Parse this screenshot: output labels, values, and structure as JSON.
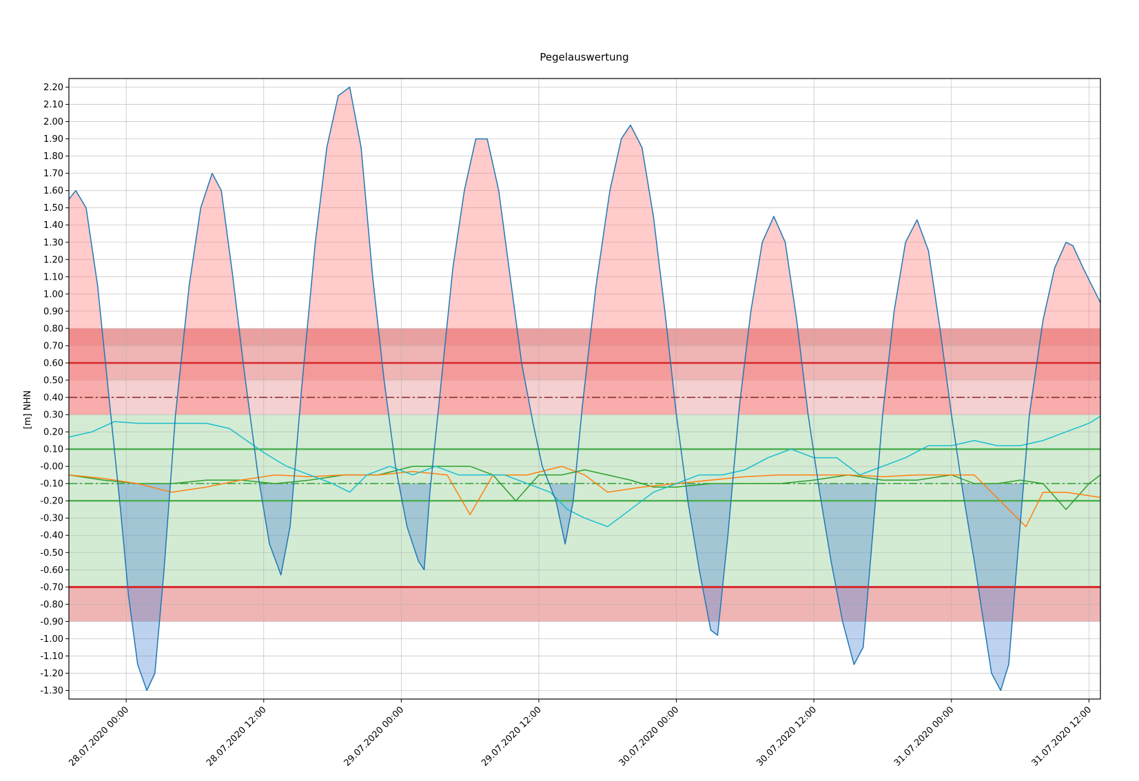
{
  "chart_data": {
    "type": "area",
    "title": "Pegelauswertung",
    "xlabel": "",
    "ylabel": "[m] NHN",
    "xlim": [
      "27.07.2020 19:00",
      "31.07.2020 12:00"
    ],
    "ylim": [
      -1.35,
      2.25
    ],
    "yticks": [
      2.2,
      2.1,
      2.0,
      1.9,
      1.8,
      1.7,
      1.6,
      1.5,
      1.4,
      1.3,
      1.2,
      1.1,
      1.0,
      0.9,
      0.8,
      0.7,
      0.6,
      0.5,
      0.4,
      0.3,
      0.2,
      0.1,
      0.0,
      -0.1,
      -0.2,
      -0.3,
      -0.4,
      -0.5,
      -0.6,
      -0.7,
      -0.8,
      -0.9,
      -1.0,
      -1.1,
      -1.2,
      -1.3
    ],
    "ytick_labels": [
      "2.20",
      "2.10",
      "2.00",
      "1.90",
      "1.80",
      "1.70",
      "1.60",
      "1.50",
      "1.40",
      "1.30",
      "1.20",
      "1.10",
      "1.00",
      "0.90",
      "0.80",
      "0.70",
      "0.60",
      "0.50",
      "0.40",
      "0.30",
      "0.20",
      "0.10",
      "-0.00",
      "-0.10",
      "-0.20",
      "-0.30",
      "-0.40",
      "-0.50",
      "-0.60",
      "-0.70",
      "-0.80",
      "-0.90",
      "-1.00",
      "-1.10",
      "-1.20",
      "-1.30"
    ],
    "xtick_labels": [
      "28.07.2020 00:00",
      "28.07.2020 12:00",
      "29.07.2020 00:00",
      "29.07.2020 12:00",
      "30.07.2020 00:00",
      "30.07.2020 12:00",
      "31.07.2020 00:00",
      "31.07.2020 12:00"
    ],
    "xticks_hours": [
      5,
      17,
      29,
      41,
      53,
      65,
      77,
      89
    ],
    "x_start": "27.07.2020 19:00",
    "grid": true,
    "bands": [
      {
        "from": 0.7,
        "to": 0.8,
        "color": "#e8a0a0"
      },
      {
        "from": 0.5,
        "to": 0.7,
        "color": "#efb4b4"
      },
      {
        "from": 0.3,
        "to": 0.5,
        "color": "#f5d0d0"
      },
      {
        "from": -0.7,
        "to": 0.3,
        "color": "#d3ebd3"
      },
      {
        "from": -0.9,
        "to": -0.7,
        "color": "#efb4b4"
      }
    ],
    "hlines": [
      {
        "y": 0.6,
        "color": "#d62728",
        "style": "solid",
        "width": 2.5
      },
      {
        "y": 0.4,
        "color": "#8c2525",
        "style": "dashdot",
        "width": 1.5
      },
      {
        "y": 0.1,
        "color": "#4caf50",
        "style": "solid",
        "width": 2.5
      },
      {
        "y": -0.1,
        "color": "#2ca02c",
        "style": "dashdot",
        "width": 1.5
      },
      {
        "y": -0.2,
        "color": "#4caf50",
        "style": "solid",
        "width": 2.5
      },
      {
        "y": -0.7,
        "color": "#d62728",
        "style": "solid",
        "width": 3
      }
    ],
    "series": [
      {
        "color": "#1f77b4",
        "points": [
          [
            0,
            1.55
          ],
          [
            0.6,
            1.6
          ],
          [
            1.5,
            1.5
          ],
          [
            2.5,
            1.05
          ],
          [
            3.5,
            0.4
          ],
          [
            4.5,
            -0.25
          ],
          [
            5.2,
            -0.75
          ],
          [
            6.0,
            -1.15
          ],
          [
            6.8,
            -1.3
          ],
          [
            7.5,
            -1.2
          ],
          [
            8.3,
            -0.6
          ],
          [
            9.3,
            0.3
          ],
          [
            10.5,
            1.05
          ],
          [
            11.5,
            1.5
          ],
          [
            12.5,
            1.7
          ],
          [
            13.3,
            1.6
          ],
          [
            14.3,
            1.1
          ],
          [
            15.3,
            0.55
          ],
          [
            16.5,
            -0.05
          ],
          [
            17.5,
            -0.45
          ],
          [
            18.5,
            -0.63
          ],
          [
            19.3,
            -0.35
          ],
          [
            20.3,
            0.45
          ],
          [
            21.5,
            1.3
          ],
          [
            22.5,
            1.85
          ],
          [
            23.5,
            2.15
          ],
          [
            24.5,
            2.2
          ],
          [
            25.5,
            1.85
          ],
          [
            26.5,
            1.1
          ],
          [
            27.5,
            0.5
          ],
          [
            28.5,
            0.0
          ],
          [
            29.5,
            -0.35
          ],
          [
            30.5,
            -0.55
          ],
          [
            31.0,
            -0.6
          ],
          [
            31.5,
            -0.15
          ],
          [
            32.5,
            0.5
          ],
          [
            33.5,
            1.15
          ],
          [
            34.5,
            1.6
          ],
          [
            35.5,
            1.9
          ],
          [
            36.5,
            1.9
          ],
          [
            37.5,
            1.6
          ],
          [
            38.5,
            1.1
          ],
          [
            39.5,
            0.6
          ],
          [
            40.5,
            0.25
          ],
          [
            41.3,
            0.0
          ],
          [
            42.5,
            -0.2
          ],
          [
            43.3,
            -0.45
          ],
          [
            44.0,
            -0.2
          ],
          [
            44.8,
            0.35
          ],
          [
            46.0,
            1.05
          ],
          [
            47.2,
            1.6
          ],
          [
            48.2,
            1.9
          ],
          [
            49.0,
            1.98
          ],
          [
            50.0,
            1.85
          ],
          [
            51.0,
            1.45
          ],
          [
            52.0,
            0.9
          ],
          [
            53.0,
            0.3
          ],
          [
            54.0,
            -0.2
          ],
          [
            55.0,
            -0.6
          ],
          [
            56.0,
            -0.95
          ],
          [
            56.6,
            -0.98
          ],
          [
            57.5,
            -0.4
          ],
          [
            58.5,
            0.35
          ],
          [
            59.5,
            0.9
          ],
          [
            60.5,
            1.3
          ],
          [
            61.5,
            1.45
          ],
          [
            62.5,
            1.3
          ],
          [
            63.5,
            0.85
          ],
          [
            64.5,
            0.3
          ],
          [
            65.5,
            -0.15
          ],
          [
            66.5,
            -0.55
          ],
          [
            67.5,
            -0.9
          ],
          [
            68.5,
            -1.15
          ],
          [
            69.3,
            -1.05
          ],
          [
            70.0,
            -0.5
          ],
          [
            71.0,
            0.3
          ],
          [
            72.0,
            0.9
          ],
          [
            73.0,
            1.3
          ],
          [
            74.0,
            1.43
          ],
          [
            75.0,
            1.25
          ],
          [
            76.0,
            0.8
          ],
          [
            77.0,
            0.3
          ],
          [
            78.0,
            -0.15
          ],
          [
            79.0,
            -0.55
          ],
          [
            79.8,
            -0.9
          ],
          [
            80.5,
            -1.2
          ],
          [
            81.3,
            -1.3
          ],
          [
            82.0,
            -1.15
          ],
          [
            82.8,
            -0.5
          ],
          [
            83.8,
            0.3
          ],
          [
            85.0,
            0.85
          ],
          [
            86.0,
            1.15
          ],
          [
            87.0,
            1.3
          ],
          [
            87.6,
            1.28
          ],
          [
            88.5,
            1.15
          ],
          [
            90.0,
            0.95
          ]
        ]
      },
      {
        "color": "#17becf",
        "points": [
          [
            0,
            0.17
          ],
          [
            2,
            0.2
          ],
          [
            4,
            0.26
          ],
          [
            6,
            0.25
          ],
          [
            8,
            0.25
          ],
          [
            10,
            0.25
          ],
          [
            12,
            0.25
          ],
          [
            14,
            0.22
          ],
          [
            15.5,
            0.15
          ],
          [
            17,
            0.08
          ],
          [
            19,
            0.0
          ],
          [
            21,
            -0.05
          ],
          [
            23,
            -0.1
          ],
          [
            24.5,
            -0.15
          ],
          [
            26,
            -0.05
          ],
          [
            28,
            0.0
          ],
          [
            30,
            -0.05
          ],
          [
            32,
            0.0
          ],
          [
            34,
            -0.05
          ],
          [
            36,
            -0.05
          ],
          [
            38,
            -0.05
          ],
          [
            40,
            -0.1
          ],
          [
            42,
            -0.15
          ],
          [
            43.5,
            -0.25
          ],
          [
            45,
            -0.3
          ],
          [
            47,
            -0.35
          ],
          [
            49,
            -0.25
          ],
          [
            51,
            -0.15
          ],
          [
            53,
            -0.1
          ],
          [
            55,
            -0.05
          ],
          [
            57,
            -0.05
          ],
          [
            59,
            -0.02
          ],
          [
            61,
            0.05
          ],
          [
            63,
            0.1
          ],
          [
            65,
            0.05
          ],
          [
            67,
            0.05
          ],
          [
            69,
            -0.05
          ],
          [
            71,
            0.0
          ],
          [
            73,
            0.05
          ],
          [
            75,
            0.12
          ],
          [
            77,
            0.12
          ],
          [
            79,
            0.15
          ],
          [
            81,
            0.12
          ],
          [
            83,
            0.12
          ],
          [
            85,
            0.15
          ],
          [
            87,
            0.2
          ],
          [
            89,
            0.25
          ],
          [
            90,
            0.29
          ]
        ]
      },
      {
        "color": "#ff7f0e",
        "points": [
          [
            0,
            -0.05
          ],
          [
            3,
            -0.07
          ],
          [
            6,
            -0.1
          ],
          [
            9,
            -0.15
          ],
          [
            12,
            -0.12
          ],
          [
            15,
            -0.08
          ],
          [
            18,
            -0.05
          ],
          [
            21,
            -0.06
          ],
          [
            24,
            -0.05
          ],
          [
            27,
            -0.05
          ],
          [
            30,
            -0.03
          ],
          [
            33,
            -0.05
          ],
          [
            35,
            -0.28
          ],
          [
            37,
            -0.05
          ],
          [
            40,
            -0.05
          ],
          [
            43,
            0.0
          ],
          [
            45,
            -0.05
          ],
          [
            47,
            -0.15
          ],
          [
            50,
            -0.12
          ],
          [
            53,
            -0.1
          ],
          [
            56,
            -0.08
          ],
          [
            59,
            -0.06
          ],
          [
            62,
            -0.05
          ],
          [
            65,
            -0.05
          ],
          [
            68,
            -0.05
          ],
          [
            71,
            -0.06
          ],
          [
            74,
            -0.05
          ],
          [
            77,
            -0.05
          ],
          [
            79,
            -0.05
          ],
          [
            80.5,
            -0.15
          ],
          [
            82,
            -0.25
          ],
          [
            83.5,
            -0.35
          ],
          [
            85,
            -0.15
          ],
          [
            87,
            -0.15
          ],
          [
            90,
            -0.18
          ]
        ]
      },
      {
        "color": "#2ca02c",
        "points": [
          [
            0,
            -0.05
          ],
          [
            3,
            -0.08
          ],
          [
            6,
            -0.1
          ],
          [
            9,
            -0.1
          ],
          [
            12,
            -0.08
          ],
          [
            15,
            -0.08
          ],
          [
            18,
            -0.1
          ],
          [
            21,
            -0.08
          ],
          [
            24,
            -0.05
          ],
          [
            27,
            -0.05
          ],
          [
            30,
            0.0
          ],
          [
            33,
            0.0
          ],
          [
            35,
            0.0
          ],
          [
            37,
            -0.05
          ],
          [
            39,
            -0.2
          ],
          [
            41,
            -0.05
          ],
          [
            43,
            -0.05
          ],
          [
            45,
            -0.02
          ],
          [
            47,
            -0.05
          ],
          [
            49,
            -0.08
          ],
          [
            51,
            -0.12
          ],
          [
            53,
            -0.12
          ],
          [
            56,
            -0.1
          ],
          [
            59,
            -0.1
          ],
          [
            62,
            -0.1
          ],
          [
            65,
            -0.08
          ],
          [
            68,
            -0.05
          ],
          [
            71,
            -0.08
          ],
          [
            74,
            -0.08
          ],
          [
            77,
            -0.05
          ],
          [
            79,
            -0.1
          ],
          [
            81,
            -0.1
          ],
          [
            83,
            -0.08
          ],
          [
            85,
            -0.1
          ],
          [
            87,
            -0.25
          ],
          [
            89,
            -0.1
          ],
          [
            90,
            -0.05
          ]
        ]
      }
    ]
  }
}
